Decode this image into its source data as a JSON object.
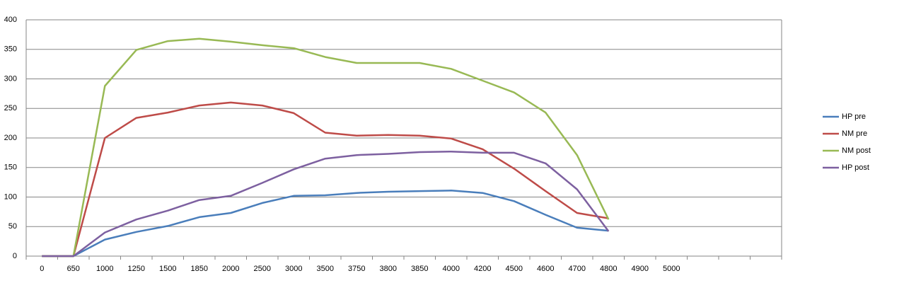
{
  "chart_data": {
    "type": "line",
    "categories": [
      "0",
      "650",
      "1000",
      "1250",
      "1500",
      "1850",
      "2000",
      "2500",
      "3000",
      "3500",
      "3750",
      "3800",
      "3850",
      "4000",
      "4200",
      "4500",
      "4600",
      "4700",
      "4800",
      "4900",
      "5000",
      null,
      null,
      null
    ],
    "series": [
      {
        "name": "HP pre",
        "color": "#4a7ebb",
        "values": [
          0,
          0,
          28,
          41,
          51,
          66,
          73,
          90,
          102,
          103,
          107,
          109,
          110,
          111,
          107,
          93,
          70,
          48,
          43,
          null,
          null,
          null,
          null,
          null
        ]
      },
      {
        "name": "NM pre",
        "color": "#be4b48",
        "values": [
          0,
          0,
          200,
          234,
          243,
          255,
          260,
          255,
          242,
          209,
          204,
          205,
          204,
          199,
          181,
          148,
          110,
          73,
          64,
          null,
          null,
          null,
          null,
          null
        ]
      },
      {
        "name": "NM post",
        "color": "#98b954",
        "values": [
          0,
          0,
          288,
          349,
          364,
          368,
          363,
          357,
          352,
          337,
          327,
          327,
          327,
          317,
          297,
          277,
          243,
          171,
          62,
          null,
          null,
          null,
          null,
          null
        ]
      },
      {
        "name": "HP post",
        "color": "#7d60a0",
        "values": [
          0,
          0,
          40,
          62,
          77,
          95,
          102,
          124,
          147,
          165,
          171,
          173,
          176,
          177,
          175,
          175,
          157,
          113,
          42,
          null,
          null,
          null,
          null,
          null
        ]
      }
    ],
    "ylim": [
      0,
      400
    ],
    "yticks": [
      0,
      50,
      100,
      150,
      200,
      250,
      300,
      350,
      400
    ],
    "grid": true,
    "legend": "right"
  }
}
